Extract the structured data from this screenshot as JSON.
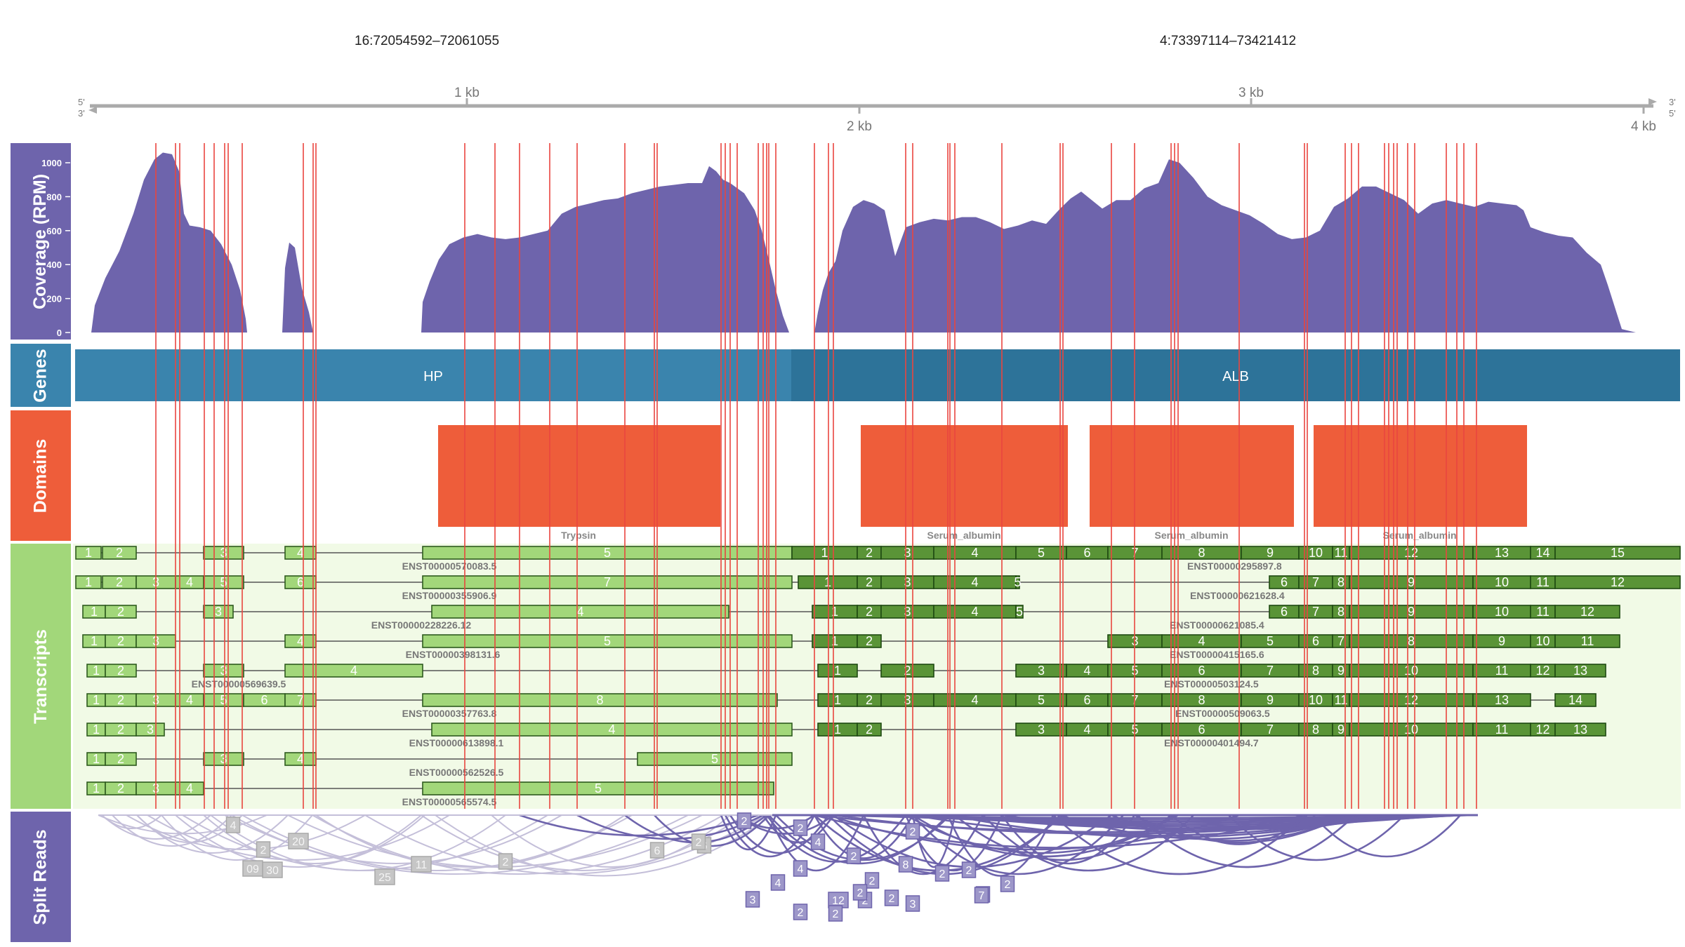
{
  "regions": [
    "16:72054592–72061055",
    "4:73397114–73421412"
  ],
  "ruler": {
    "ticks": [
      "1 kb",
      "2 kb",
      "3 kb",
      "4 kb"
    ],
    "left_top": "5'",
    "left_bottom": "3'",
    "right_top": "3'",
    "right_bottom": "5'"
  },
  "tracks": {
    "coverage": "Coverage (RPM)",
    "genes": "Genes",
    "domains": "Domains",
    "transcripts": "Transcripts",
    "split_reads": "Split Reads"
  },
  "coverage_ticks": [
    "0",
    "200",
    "400",
    "600",
    "800",
    "1000"
  ],
  "genes": [
    {
      "name": "HP",
      "color": "#3a84ad"
    },
    {
      "name": "ALB",
      "color": "#2d7399"
    }
  ],
  "domains": [
    {
      "name": "Trypsin",
      "color": "#ee5d3a"
    },
    {
      "name": "Serum_albumin",
      "color": "#ee5d3a"
    },
    {
      "name": "Serum_albumin",
      "color": "#ee5d3a"
    },
    {
      "name": "Serum_albumin",
      "color": "#ee5d3a"
    }
  ],
  "colors": {
    "coverage": "#6e64ac",
    "splice_line": "#e9453f",
    "transcripts_bg": "#f1fae6",
    "exon_hp": "#a2d77a",
    "exon_alb": "#5a9437",
    "domains_label_bg": "#ee5d3a",
    "transcripts_label_bg": "#a2d77a",
    "reads_label_bg": "#6e64ac",
    "reads_hp": "#c4bfd9",
    "reads_alb": "#6e64ac"
  },
  "transcripts": [
    {
      "left": "ENST00000570083.5",
      "right": "ENST00000295897.8"
    },
    {
      "left": "ENST00000355906.9",
      "right": "ENST00000621628.4"
    },
    {
      "left": "ENST00000228226.12",
      "right": "ENST00000621085.4"
    },
    {
      "left": "ENST00000398131.6",
      "right": "ENST00000415165.6"
    },
    {
      "left": "ENST00000569639.5",
      "right": "ENST00000503124.5"
    },
    {
      "left": "ENST00000357763.8",
      "right": "ENST00000509063.5"
    },
    {
      "left": "ENST00000613898.1",
      "right": "ENST00000401494.7"
    },
    {
      "left": "ENST00000562526.5",
      "right": ""
    },
    {
      "left": "ENST00000565574.5",
      "right": ""
    }
  ],
  "read_counts": [
    "4",
    "20",
    "2",
    "2",
    "2",
    "6",
    "2",
    "2",
    "2",
    "4",
    "2",
    "3",
    "2",
    "8",
    "2",
    "4",
    "7",
    "2",
    "12",
    "2",
    "2",
    "3",
    "2",
    "2",
    "2",
    "4",
    "2",
    "6",
    "2",
    "11",
    "25",
    "30",
    "09"
  ]
}
